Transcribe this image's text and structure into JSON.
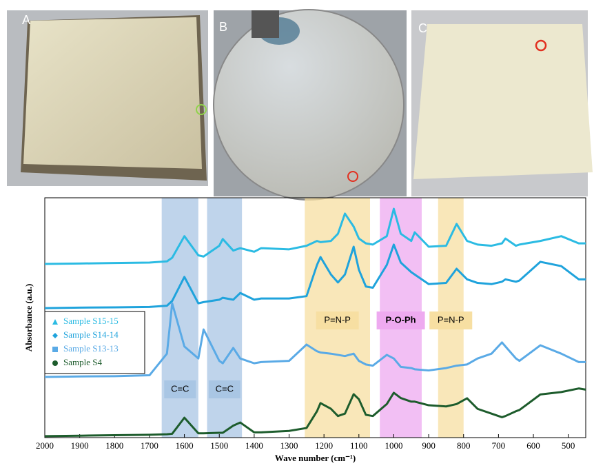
{
  "panels": [
    {
      "label": "A"
    },
    {
      "label": "B"
    },
    {
      "label": "C"
    }
  ],
  "chart_data": {
    "type": "line",
    "xlabel": "Wave number (cm⁻¹)",
    "ylabel": "Absorbance (a.u.)",
    "xlim": [
      2000,
      450
    ],
    "ylim": [
      0,
      100
    ],
    "xticks": [
      2000,
      1900,
      1800,
      1700,
      1600,
      1500,
      1400,
      1300,
      1200,
      1100,
      1000,
      900,
      800,
      700,
      600,
      500
    ],
    "x": [
      2000,
      1900,
      1800,
      1700,
      1650,
      1635,
      1600,
      1560,
      1545,
      1500,
      1490,
      1460,
      1440,
      1400,
      1380,
      1300,
      1250,
      1220,
      1210,
      1180,
      1160,
      1140,
      1115,
      1100,
      1080,
      1060,
      1020,
      1000,
      980,
      950,
      940,
      900,
      850,
      820,
      790,
      760,
      720,
      690,
      680,
      650,
      640,
      580,
      520,
      470,
      450
    ],
    "series": [
      {
        "name": "Sample S15-15",
        "color": "#2bbbe3",
        "marker": "triangle",
        "values": [
          72.4,
          72.6,
          72.8,
          73,
          73.5,
          75,
          84,
          76,
          75.5,
          80,
          82.8,
          78,
          79,
          77.5,
          79,
          78.5,
          80,
          82,
          81.5,
          82,
          85,
          93.4,
          88,
          83,
          81,
          80.5,
          84,
          95.4,
          85,
          82,
          85.6,
          79.6,
          80,
          89.1,
          82,
          80.5,
          80,
          81,
          83,
          80,
          80.5,
          82,
          84,
          81,
          81
        ]
      },
      {
        "name": "Sample S14-14",
        "color": "#1fa3dc",
        "marker": "diamond",
        "values": [
          54,
          54.2,
          54.3,
          54.5,
          55,
          57,
          67,
          56,
          56.5,
          57.5,
          58.3,
          57.5,
          60.3,
          57.5,
          58,
          58,
          59,
          72,
          75.3,
          68,
          64.7,
          68,
          79.6,
          70,
          63,
          62.5,
          72,
          80.5,
          73,
          69,
          68,
          64,
          64.5,
          70.4,
          66,
          64.5,
          64,
          65,
          66,
          65,
          65.5,
          73.3,
          71.5,
          66,
          66
        ]
      },
      {
        "name": "Sample S13-13",
        "color": "#5aaae6",
        "marker": "square",
        "values": [
          25.3,
          25.5,
          25.6,
          26,
          35,
          56,
          38,
          33,
          45.1,
          32,
          31,
          37.4,
          33,
          31,
          31.5,
          32,
          38.8,
          36,
          35.5,
          35,
          34.5,
          34,
          35,
          32,
          30.5,
          30,
          34.5,
          33,
          29.5,
          29,
          28.5,
          28,
          29,
          30,
          30.5,
          33,
          35,
          39.7,
          38,
          33,
          32,
          38.5,
          35,
          31.5,
          31.5
        ]
      },
      {
        "name": "Sample S4",
        "color": "#1d5c2c",
        "marker": "circle",
        "values": [
          0.6,
          0.8,
          1,
          1.2,
          1.4,
          1.6,
          8.3,
          1.8,
          1.8,
          2,
          2,
          5,
          6.3,
          2.2,
          2.2,
          2.8,
          4,
          11,
          14.4,
          12,
          9,
          10,
          18.1,
          16,
          9.5,
          9,
          14,
          18.7,
          16.5,
          15,
          15,
          13.5,
          13,
          14,
          16.4,
          12,
          10,
          8.5,
          9,
          11,
          11.5,
          18,
          19,
          20.5,
          20
        ]
      }
    ],
    "bands": [
      {
        "from": 1665,
        "to": 1560,
        "label": "C=C",
        "color": "#a9c6e4"
      },
      {
        "from": 1535,
        "to": 1435,
        "label": "C=C",
        "color": "#a9c6e4"
      },
      {
        "from": 1255,
        "to": 1068,
        "label": "P=N-P",
        "color": "#f7dfa2"
      },
      {
        "from": 1040,
        "to": 920,
        "label": "P-O-Ph",
        "color": "#eeaaf0"
      },
      {
        "from": 873,
        "to": 800,
        "label": "P=N-P",
        "color": "#f7dfa2"
      }
    ]
  }
}
